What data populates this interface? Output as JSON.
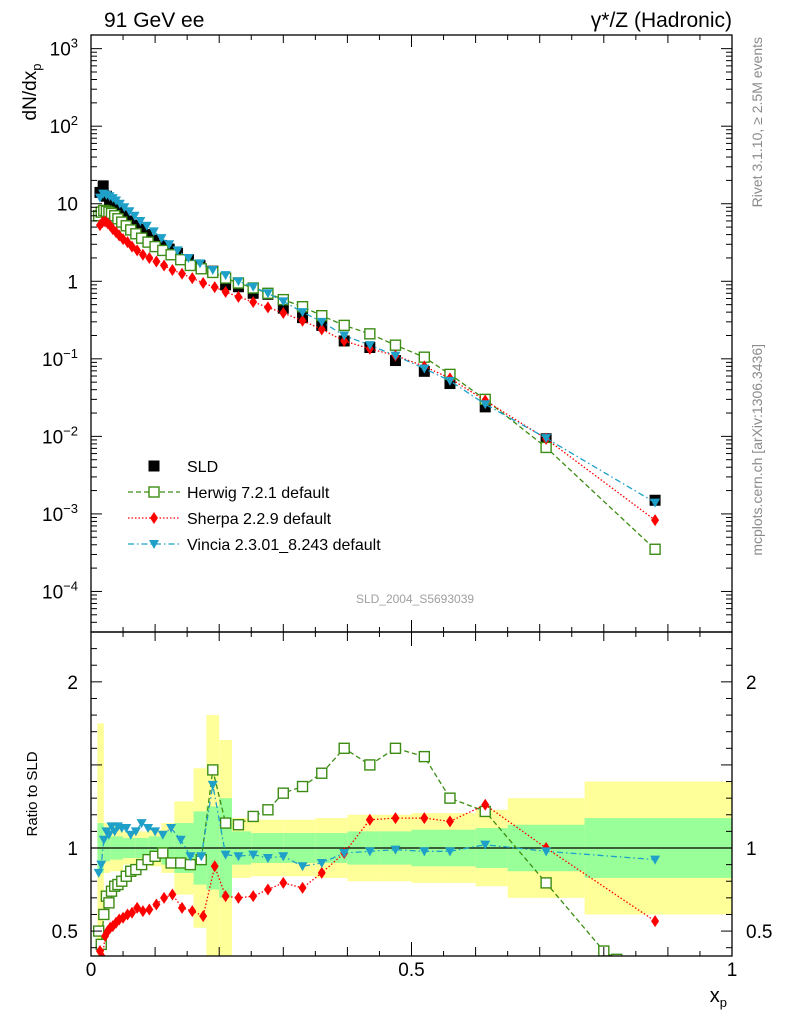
{
  "header": {
    "left_title": "91 GeV ee",
    "right_title": "γ*/Z (Hadronic)"
  },
  "side_labels": {
    "rivet": "Rivet 3.1.10, ≥ 2.5M events",
    "mcplots": "mcplots.cern.ch [arXiv:1306.3436]"
  },
  "watermark": "SLD_2004_S5693039",
  "colors": {
    "data": "#000000",
    "herwig": "#3c8c14",
    "sherpa": "#ff0000",
    "vincia": "#1ea0c8",
    "band_inner": "#99ff99",
    "band_outer": "#ffff99"
  },
  "chart_data": [
    {
      "type": "scatter",
      "panel": "main",
      "xlabel": "",
      "ylabel": "dN/dx_p",
      "ylabel_main": "dN/dx",
      "ylabel_sub": "p",
      "scale": "log",
      "xlim": [
        0,
        1
      ],
      "ylim": [
        3e-05,
        1500
      ],
      "yticks": [
        {
          "v": 0.0001,
          "b": "10",
          "e": "−4"
        },
        {
          "v": 0.001,
          "b": "10",
          "e": "−3"
        },
        {
          "v": 0.01,
          "b": "10",
          "e": "−2"
        },
        {
          "v": 0.1,
          "b": "10",
          "e": "−1"
        },
        {
          "v": 1,
          "b": "1",
          "e": ""
        },
        {
          "v": 10,
          "b": "10",
          "e": ""
        },
        {
          "v": 100,
          "b": "10",
          "e": "2"
        },
        {
          "v": 1000,
          "b": "10",
          "e": "3"
        }
      ],
      "legend_position": "lower-left",
      "series": [
        {
          "name": "SLD",
          "key": "data",
          "marker": "square-filled",
          "x": [
            0.014,
            0.019,
            0.024,
            0.029,
            0.034,
            0.039,
            0.045,
            0.052,
            0.06,
            0.068,
            0.077,
            0.087,
            0.098,
            0.11,
            0.122,
            0.135,
            0.152,
            0.17,
            0.19,
            0.21,
            0.23,
            0.253,
            0.276,
            0.3,
            0.33,
            0.36,
            0.395,
            0.435,
            0.475,
            0.52,
            0.56,
            0.615,
            0.71,
            0.88
          ],
          "y": [
            14,
            17,
            12.5,
            11,
            10,
            9,
            8,
            7,
            6,
            5.3,
            4.7,
            4,
            3.4,
            2.9,
            2.6,
            2.3,
            1.9,
            1.6,
            1.35,
            0.9,
            0.85,
            0.7,
            0.68,
            0.45,
            0.34,
            0.27,
            0.17,
            0.14,
            0.095,
            0.069,
            0.048,
            0.024,
            0.0093,
            0.0015
          ]
        },
        {
          "name": "Herwig 7.2.1 default",
          "key": "herwig",
          "marker": "square-open",
          "line": "dashed",
          "x": [
            0.012,
            0.016,
            0.02,
            0.024,
            0.028,
            0.032,
            0.037,
            0.042,
            0.048,
            0.055,
            0.062,
            0.07,
            0.079,
            0.089,
            0.1,
            0.112,
            0.125,
            0.14,
            0.155,
            0.172,
            0.19,
            0.21,
            0.23,
            0.253,
            0.276,
            0.3,
            0.33,
            0.36,
            0.395,
            0.435,
            0.475,
            0.52,
            0.56,
            0.615,
            0.71,
            0.88
          ],
          "y": [
            7,
            7.8,
            8.2,
            8.0,
            7.8,
            7.5,
            7.0,
            6.4,
            5.8,
            5.2,
            4.6,
            4.1,
            3.6,
            3.2,
            2.8,
            2.5,
            2.2,
            1.9,
            1.6,
            1.45,
            1.3,
            1.1,
            0.95,
            0.82,
            0.7,
            0.58,
            0.47,
            0.36,
            0.27,
            0.21,
            0.15,
            0.105,
            0.063,
            0.03,
            0.0072,
            0.00035
          ]
        },
        {
          "name": "Sherpa 2.2.9 default",
          "key": "sherpa",
          "marker": "diamond-filled",
          "line": "dotted",
          "x": [
            0.014,
            0.018,
            0.022,
            0.026,
            0.03,
            0.034,
            0.039,
            0.044,
            0.05,
            0.057,
            0.064,
            0.072,
            0.081,
            0.091,
            0.102,
            0.114,
            0.127,
            0.142,
            0.158,
            0.175,
            0.193,
            0.21,
            0.23,
            0.253,
            0.276,
            0.3,
            0.33,
            0.36,
            0.395,
            0.435,
            0.475,
            0.52,
            0.56,
            0.615,
            0.71,
            0.88
          ],
          "y": [
            5.3,
            5.8,
            5.9,
            5.6,
            5.2,
            4.7,
            4.3,
            3.9,
            3.5,
            3.2,
            2.8,
            2.5,
            2.2,
            2.0,
            1.8,
            1.6,
            1.4,
            1.25,
            1.1,
            0.95,
            0.84,
            0.73,
            0.63,
            0.54,
            0.46,
            0.39,
            0.31,
            0.24,
            0.17,
            0.135,
            0.11,
            0.08,
            0.056,
            0.029,
            0.0093,
            0.00083
          ]
        },
        {
          "name": "Vincia 2.3.01_8.243 default",
          "key": "vincia",
          "marker": "triangle-down-filled",
          "line": "dashdot",
          "x": [
            0.014,
            0.019,
            0.024,
            0.029,
            0.034,
            0.039,
            0.045,
            0.052,
            0.06,
            0.068,
            0.077,
            0.087,
            0.098,
            0.11,
            0.122,
            0.135,
            0.152,
            0.17,
            0.19,
            0.21,
            0.23,
            0.253,
            0.276,
            0.3,
            0.33,
            0.36,
            0.395,
            0.435,
            0.475,
            0.52,
            0.56,
            0.615,
            0.71,
            0.88
          ],
          "y": [
            12,
            13.5,
            13,
            12.5,
            11.8,
            11,
            10,
            9,
            8,
            7,
            6,
            5.2,
            4.4,
            3.6,
            3.0,
            2.5,
            2.0,
            1.7,
            1.4,
            1.2,
            1.0,
            0.85,
            0.7,
            0.55,
            0.4,
            0.3,
            0.2,
            0.15,
            0.11,
            0.075,
            0.052,
            0.026,
            0.0095,
            0.0014
          ]
        }
      ]
    },
    {
      "type": "line",
      "panel": "ratio",
      "xlabel": "x_p",
      "xlabel_main": "x",
      "xlabel_sub": "p",
      "ylabel": "Ratio to SLD",
      "xlim": [
        0,
        1
      ],
      "ylim": [
        0.35,
        2.3
      ],
      "xticks": [
        {
          "v": 0,
          "t": "0"
        },
        {
          "v": 0.5,
          "t": "0.5"
        },
        {
          "v": 1,
          "t": "1"
        }
      ],
      "yticks": [
        {
          "v": 0.5,
          "t": "0.5"
        },
        {
          "v": 1,
          "t": "1"
        },
        {
          "v": 2,
          "t": "2"
        }
      ],
      "bands": {
        "edges": [
          0.01,
          0.02,
          0.03,
          0.05,
          0.07,
          0.09,
          0.11,
          0.13,
          0.16,
          0.18,
          0.2,
          0.22,
          0.25,
          0.3,
          0.35,
          0.4,
          0.45,
          0.5,
          0.55,
          0.6,
          0.65,
          0.77,
          1.0
        ],
        "inner": [
          0.15,
          0.08,
          0.07,
          0.06,
          0.06,
          0.07,
          0.1,
          0.15,
          0.22,
          0.25,
          0.3,
          0.1,
          0.09,
          0.09,
          0.09,
          0.1,
          0.1,
          0.11,
          0.11,
          0.12,
          0.14,
          0.18,
          0.17
        ],
        "outer": [
          0.75,
          0.15,
          0.14,
          0.1,
          0.1,
          0.11,
          0.15,
          0.28,
          0.48,
          0.8,
          0.65,
          0.18,
          0.17,
          0.17,
          0.18,
          0.2,
          0.2,
          0.21,
          0.21,
          0.23,
          0.3,
          0.4,
          0.5
        ]
      },
      "series": [
        {
          "name": "Herwig 7.2.1 default",
          "key": "herwig",
          "x": [
            0.012,
            0.016,
            0.02,
            0.024,
            0.028,
            0.032,
            0.037,
            0.042,
            0.048,
            0.055,
            0.062,
            0.07,
            0.079,
            0.089,
            0.1,
            0.112,
            0.125,
            0.14,
            0.155,
            0.172,
            0.19,
            0.21,
            0.23,
            0.253,
            0.276,
            0.3,
            0.33,
            0.36,
            0.395,
            0.435,
            0.475,
            0.52,
            0.56,
            0.615,
            0.71,
            0.8,
            0.82
          ],
          "y": [
            0.5,
            0.42,
            0.6,
            0.71,
            0.67,
            0.74,
            0.77,
            0.78,
            0.8,
            0.83,
            0.86,
            0.87,
            0.9,
            0.93,
            0.95,
            0.97,
            0.91,
            0.91,
            0.9,
            0.93,
            1.47,
            1.15,
            1.14,
            1.19,
            1.23,
            1.33,
            1.37,
            1.45,
            1.6,
            1.5,
            1.6,
            1.55,
            1.3,
            1.22,
            0.79,
            0.38,
            0.33
          ]
        },
        {
          "name": "Sherpa 2.2.9 default",
          "key": "sherpa",
          "x": [
            0.014,
            0.018,
            0.022,
            0.026,
            0.03,
            0.034,
            0.039,
            0.044,
            0.05,
            0.057,
            0.064,
            0.072,
            0.081,
            0.091,
            0.102,
            0.114,
            0.127,
            0.142,
            0.158,
            0.175,
            0.193,
            0.21,
            0.23,
            0.253,
            0.276,
            0.3,
            0.33,
            0.36,
            0.395,
            0.435,
            0.475,
            0.52,
            0.56,
            0.615,
            0.71,
            0.88
          ],
          "y": [
            0.38,
            0.34,
            0.47,
            0.5,
            0.52,
            0.53,
            0.55,
            0.57,
            0.58,
            0.6,
            0.61,
            0.64,
            0.62,
            0.63,
            0.66,
            0.7,
            0.72,
            0.64,
            0.62,
            0.59,
            0.89,
            0.71,
            0.7,
            0.71,
            0.75,
            0.79,
            0.76,
            0.85,
            0.97,
            1.17,
            1.18,
            1.18,
            1.16,
            1.26,
            1.0,
            0.56
          ]
        },
        {
          "name": "Vincia 2.3.01_8.243 default",
          "key": "vincia",
          "x": [
            0.012,
            0.016,
            0.02,
            0.024,
            0.028,
            0.032,
            0.037,
            0.042,
            0.048,
            0.055,
            0.062,
            0.07,
            0.079,
            0.089,
            0.1,
            0.112,
            0.125,
            0.14,
            0.155,
            0.172,
            0.19,
            0.21,
            0.23,
            0.253,
            0.276,
            0.3,
            0.33,
            0.36,
            0.395,
            0.435,
            0.475,
            0.52,
            0.56,
            0.615,
            0.71,
            0.88
          ],
          "y": [
            0.85,
            0.9,
            1.05,
            1.1,
            1.08,
            1.13,
            1.1,
            1.13,
            1.12,
            1.12,
            1.08,
            1.1,
            1.15,
            1.12,
            1.1,
            1.08,
            1.12,
            1.05,
            0.95,
            0.95,
            1.38,
            0.96,
            0.95,
            0.96,
            0.94,
            0.95,
            0.89,
            0.91,
            0.97,
            0.98,
            0.99,
            0.98,
            0.98,
            1.02,
            0.98,
            0.93
          ]
        }
      ]
    }
  ]
}
